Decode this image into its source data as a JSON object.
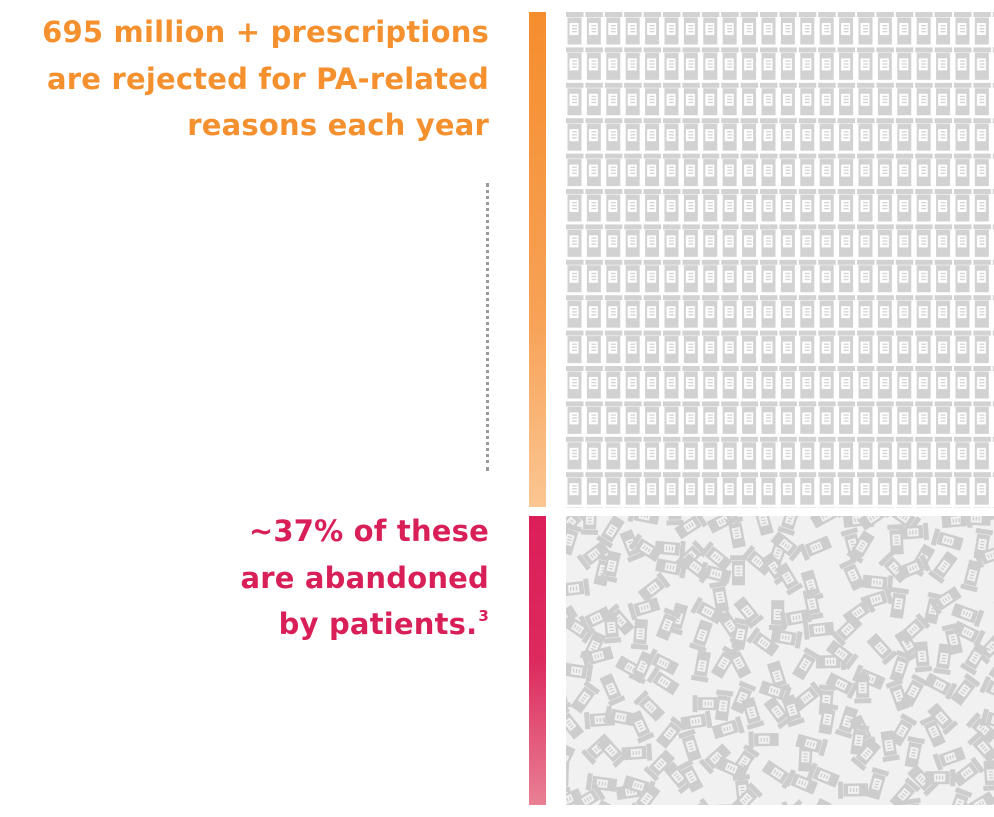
{
  "stat_rejected": {
    "lines": [
      "695 million + prescriptions",
      "are rejected for PA-related",
      "reasons each year"
    ],
    "color": "#f5902f"
  },
  "stat_abandoned": {
    "lines": [
      "~37% of these",
      "are abandoned",
      "by patients."
    ],
    "footnote": "3",
    "color": "#d81f58"
  },
  "icons": {
    "upright_grid": "pill-bottle-icon",
    "scattered": "pill-bottle-icon"
  },
  "colors": {
    "orange_bar": "#f58d2d",
    "pink_bar": "#dc1e58",
    "icon_gray": "#d2d2d2",
    "scatter_background": "#f1f1f1"
  }
}
